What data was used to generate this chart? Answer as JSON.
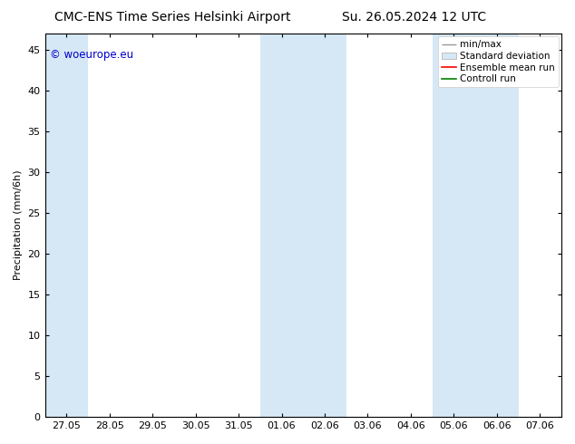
{
  "title_left": "CMC-ENS Time Series Helsinki Airport",
  "title_right": "Su. 26.05.2024 12 UTC",
  "ylabel": "Precipitation (mm/6h)",
  "ylim": [
    0,
    47
  ],
  "yticks": [
    0,
    5,
    10,
    15,
    20,
    25,
    30,
    35,
    40,
    45
  ],
  "xtick_labels": [
    "27.05",
    "28.05",
    "29.05",
    "30.05",
    "31.05",
    "01.06",
    "02.06",
    "03.06",
    "04.06",
    "05.06",
    "06.06",
    "07.06"
  ],
  "shade_color": "#d6e8f5",
  "shaded_index_ranges": [
    [
      -0.5,
      0.5
    ],
    [
      4.5,
      6.5
    ],
    [
      8.5,
      10.5
    ]
  ],
  "background_color": "#ffffff",
  "plot_bg_color": "#ffffff",
  "legend_labels": [
    "min/max",
    "Standard deviation",
    "Ensemble mean run",
    "Controll run"
  ],
  "legend_line_colors": [
    "#999999",
    "#ccddee",
    "#ff0000",
    "#008000"
  ],
  "legend_patch_colors": [
    null,
    "#d6e8f5",
    null,
    null
  ],
  "watermark_text": "© woeurope.eu",
  "watermark_color": "#0000cc",
  "title_fontsize": 10,
  "axis_label_fontsize": 8,
  "tick_fontsize": 8,
  "legend_fontsize": 7.5,
  "spine_color": "#000000",
  "tick_color": "#000000"
}
